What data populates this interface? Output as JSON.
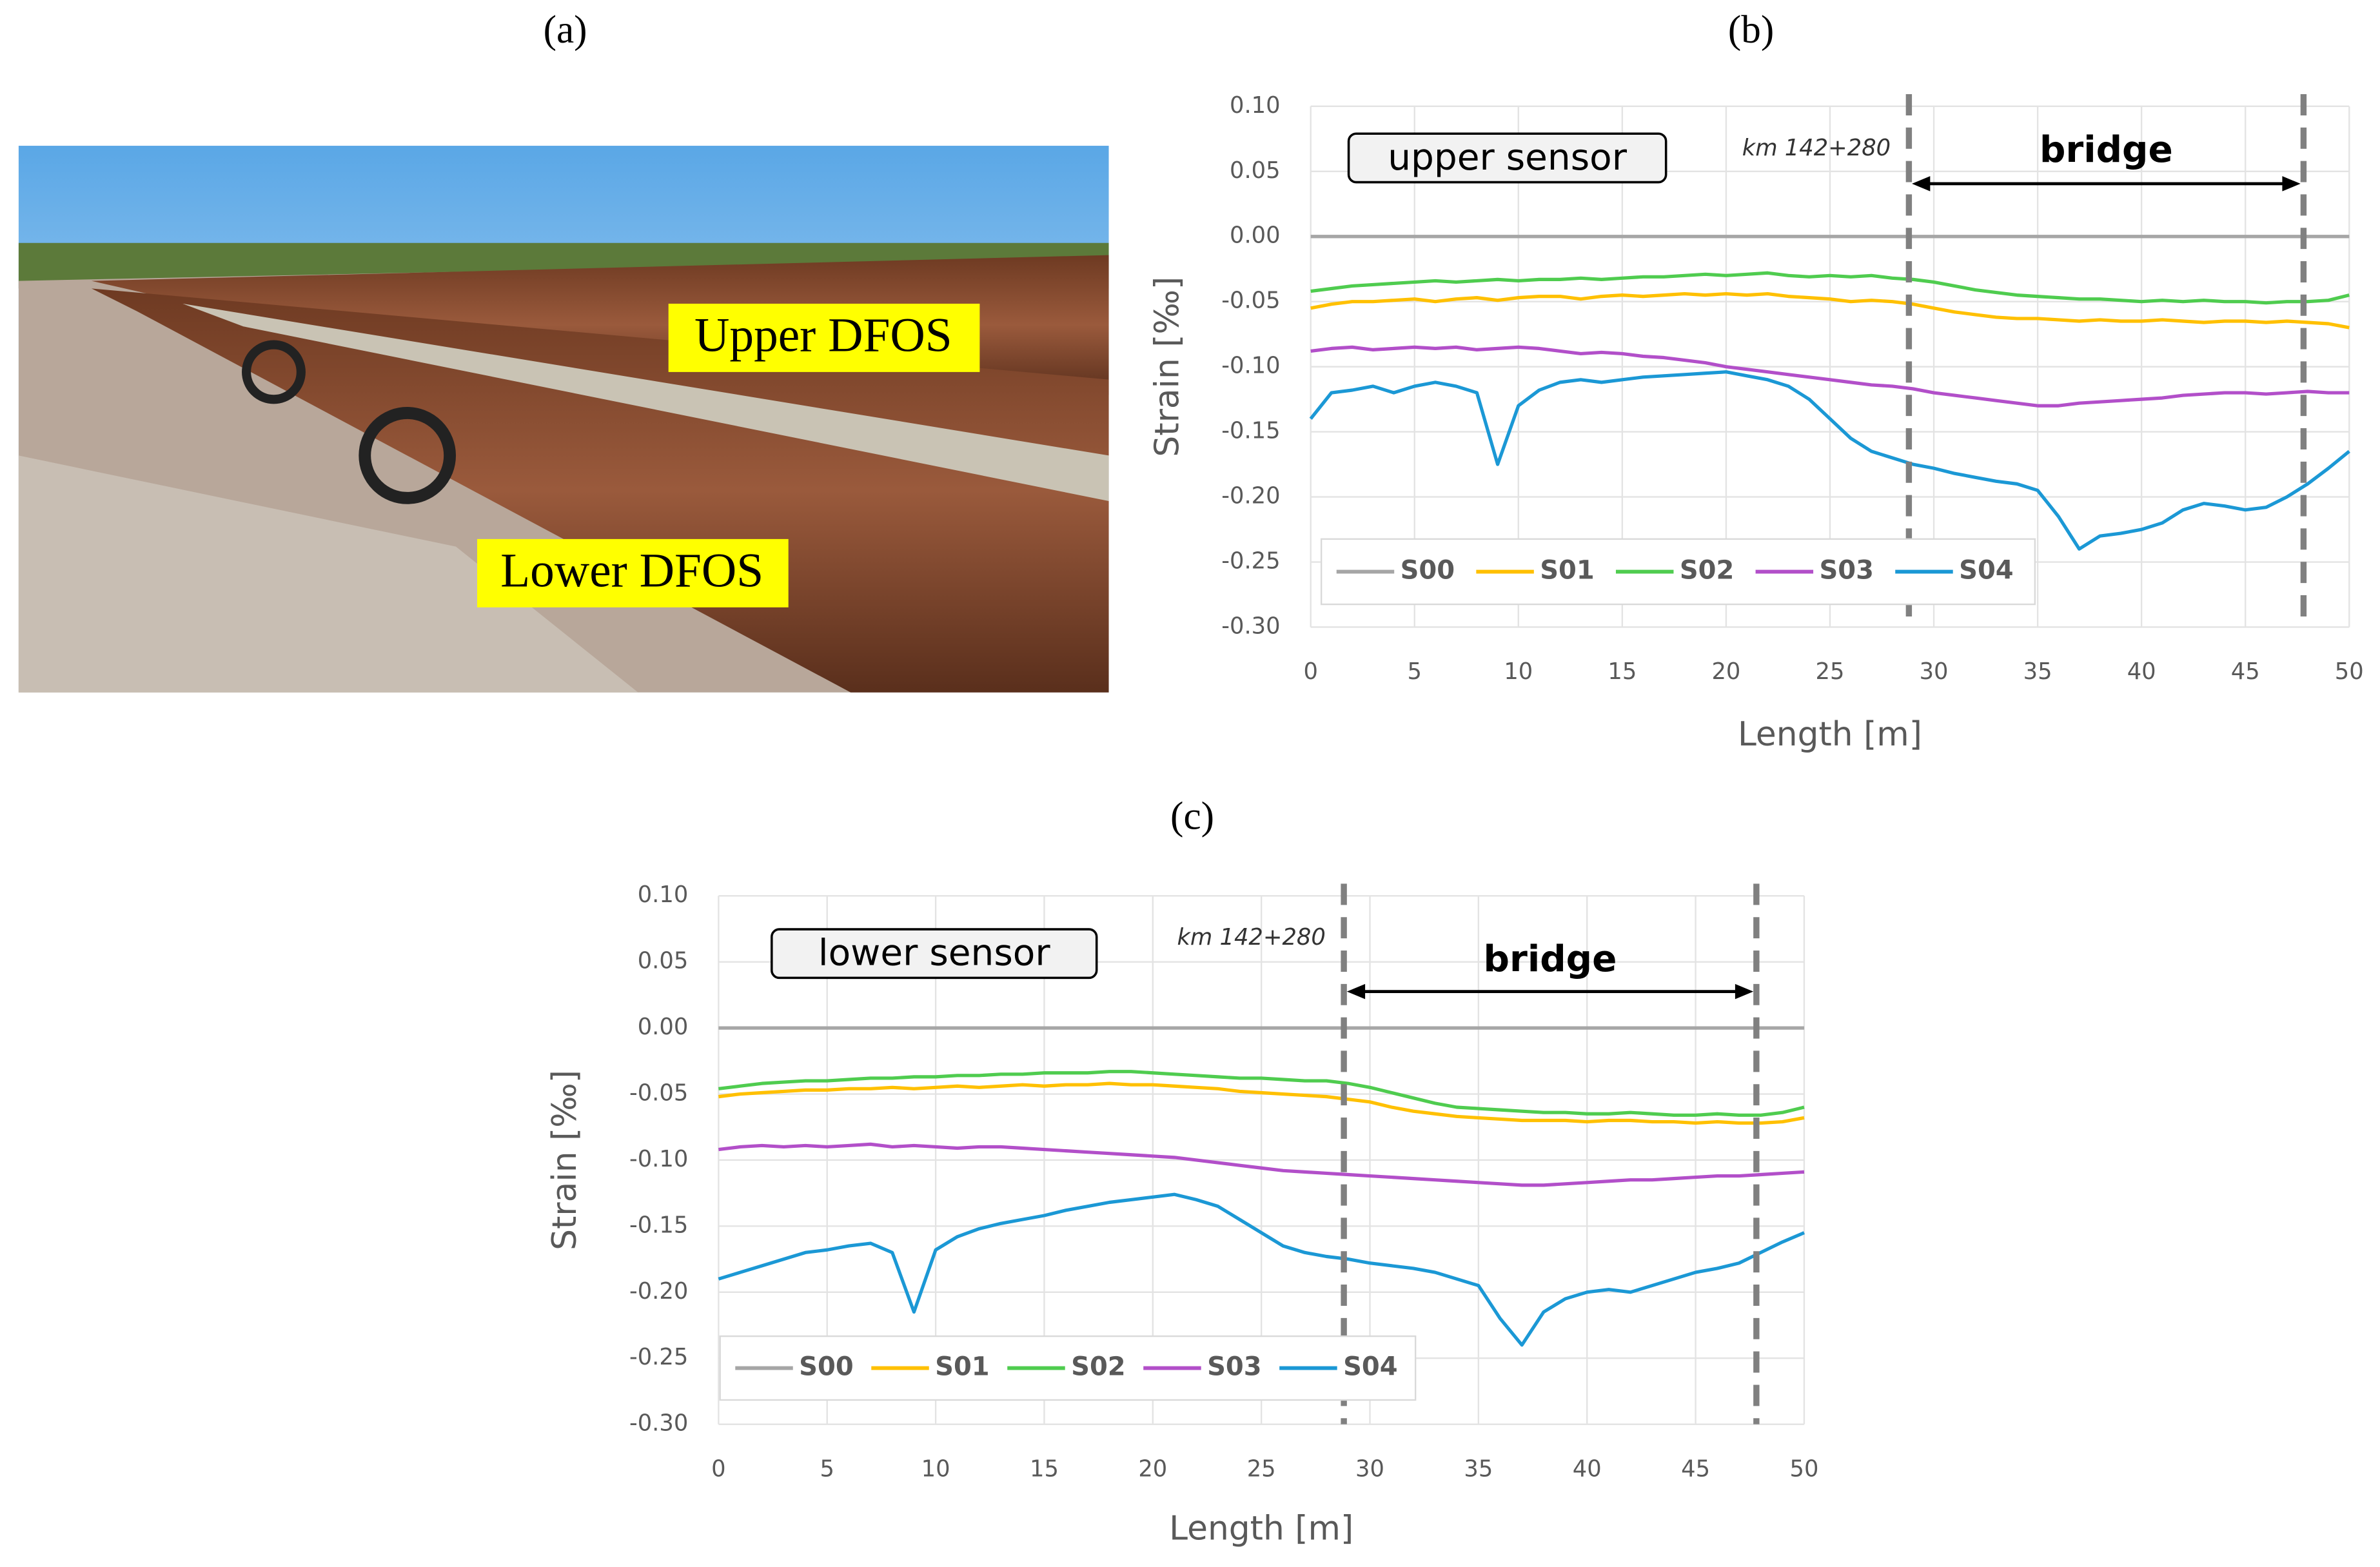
{
  "panels": [
    "(a)",
    "(b)",
    "(c)"
  ],
  "photo": {
    "labels": [
      "Upper DFOS",
      "Lower DFOS"
    ]
  },
  "chart_data": [
    {
      "type": "line",
      "y_label": "Strain [‰]",
      "x_label": "Length [m]",
      "box_label": "upper sensor",
      "annotations": [
        "km 142+280",
        "bridge"
      ],
      "bridge_span": [
        28.8,
        47.8
      ],
      "legend": "lower left",
      "grid": true,
      "xlim": [
        0,
        50
      ],
      "xticks": [
        0,
        5,
        10,
        15,
        20,
        25,
        30,
        35,
        40,
        45,
        50
      ],
      "ylim": [
        -0.3,
        0.1
      ],
      "yticks": [
        {
          "value": 0.1,
          "label": "0.10"
        },
        {
          "value": 0.05,
          "label": "0.05"
        },
        {
          "value": 0,
          "label": "0.00"
        },
        {
          "value": -0.05,
          "label": "-0.05"
        },
        {
          "value": -0.1,
          "label": "-0.10"
        },
        {
          "value": -0.15,
          "label": "-0.15"
        },
        {
          "value": -0.2,
          "label": "-0.20"
        },
        {
          "value": -0.25,
          "label": "-0.25"
        },
        {
          "value": -0.3,
          "label": "-0.30"
        }
      ],
      "x": [
        0,
        1,
        2,
        3,
        4,
        5,
        6,
        7,
        8,
        9,
        10,
        11,
        12,
        13,
        14,
        15,
        16,
        17,
        18,
        19,
        20,
        21,
        22,
        23,
        24,
        25,
        26,
        27,
        28,
        29,
        30,
        31,
        32,
        33,
        34,
        35,
        36,
        37,
        38,
        39,
        40,
        41,
        42,
        43,
        44,
        45,
        46,
        47,
        48,
        49,
        50
      ],
      "series": [
        {
          "name": "S00",
          "color": "#a6a6a6",
          "values": [
            0,
            0,
            0,
            0,
            0,
            0,
            0,
            0,
            0,
            0,
            0,
            0,
            0,
            0,
            0,
            0,
            0,
            0,
            0,
            0,
            0,
            0,
            0,
            0,
            0,
            0,
            0,
            0,
            0,
            0,
            0,
            0,
            0,
            0,
            0,
            0,
            0,
            0,
            0,
            0,
            0,
            0,
            0,
            0,
            0,
            0,
            0,
            0,
            0,
            0,
            0
          ]
        },
        {
          "name": "S01",
          "color": "#ffc000",
          "values": [
            -0.055,
            -0.052,
            -0.05,
            -0.05,
            -0.049,
            -0.048,
            -0.05,
            -0.048,
            -0.047,
            -0.049,
            -0.047,
            -0.046,
            -0.046,
            -0.048,
            -0.046,
            -0.045,
            -0.046,
            -0.045,
            -0.044,
            -0.045,
            -0.044,
            -0.045,
            -0.044,
            -0.046,
            -0.047,
            -0.048,
            -0.05,
            -0.049,
            -0.05,
            -0.052,
            -0.055,
            -0.058,
            -0.06,
            -0.062,
            -0.063,
            -0.063,
            -0.064,
            -0.065,
            -0.064,
            -0.065,
            -0.065,
            -0.064,
            -0.065,
            -0.066,
            -0.065,
            -0.065,
            -0.066,
            -0.065,
            -0.066,
            -0.067,
            -0.07
          ]
        },
        {
          "name": "S02",
          "color": "#4fcc4f",
          "values": [
            -0.042,
            -0.04,
            -0.038,
            -0.037,
            -0.036,
            -0.035,
            -0.034,
            -0.035,
            -0.034,
            -0.033,
            -0.034,
            -0.033,
            -0.033,
            -0.032,
            -0.033,
            -0.032,
            -0.031,
            -0.031,
            -0.03,
            -0.029,
            -0.03,
            -0.029,
            -0.028,
            -0.03,
            -0.031,
            -0.03,
            -0.031,
            -0.03,
            -0.032,
            -0.033,
            -0.035,
            -0.038,
            -0.041,
            -0.043,
            -0.045,
            -0.046,
            -0.047,
            -0.048,
            -0.048,
            -0.049,
            -0.05,
            -0.049,
            -0.05,
            -0.049,
            -0.05,
            -0.05,
            -0.051,
            -0.05,
            -0.05,
            -0.049,
            -0.045
          ]
        },
        {
          "name": "S03",
          "color": "#b24fc9",
          "values": [
            -0.088,
            -0.086,
            -0.085,
            -0.087,
            -0.086,
            -0.085,
            -0.086,
            -0.085,
            -0.087,
            -0.086,
            -0.085,
            -0.086,
            -0.088,
            -0.09,
            -0.089,
            -0.09,
            -0.092,
            -0.093,
            -0.095,
            -0.097,
            -0.1,
            -0.102,
            -0.104,
            -0.106,
            -0.108,
            -0.11,
            -0.112,
            -0.114,
            -0.115,
            -0.117,
            -0.12,
            -0.122,
            -0.124,
            -0.126,
            -0.128,
            -0.13,
            -0.13,
            -0.128,
            -0.127,
            -0.126,
            -0.125,
            -0.124,
            -0.122,
            -0.121,
            -0.12,
            -0.12,
            -0.121,
            -0.12,
            -0.119,
            -0.12,
            -0.12
          ]
        },
        {
          "name": "S04",
          "color": "#1b98d5",
          "values": [
            -0.14,
            -0.12,
            -0.118,
            -0.115,
            -0.12,
            -0.115,
            -0.112,
            -0.115,
            -0.12,
            -0.175,
            -0.13,
            -0.118,
            -0.112,
            -0.11,
            -0.112,
            -0.11,
            -0.108,
            -0.107,
            -0.106,
            -0.105,
            -0.104,
            -0.107,
            -0.11,
            -0.115,
            -0.125,
            -0.14,
            -0.155,
            -0.165,
            -0.17,
            -0.175,
            -0.178,
            -0.182,
            -0.185,
            -0.188,
            -0.19,
            -0.195,
            -0.215,
            -0.24,
            -0.23,
            -0.228,
            -0.225,
            -0.22,
            -0.21,
            -0.205,
            -0.207,
            -0.21,
            -0.208,
            -0.2,
            -0.19,
            -0.178,
            -0.165
          ]
        }
      ]
    },
    {
      "type": "line",
      "y_label": "Strain [‰]",
      "x_label": "Length [m]",
      "box_label": "lower sensor",
      "annotations": [
        "km 142+280",
        "bridge"
      ],
      "bridge_span": [
        28.8,
        47.8
      ],
      "legend": "lower left",
      "grid": true,
      "xlim": [
        0,
        50
      ],
      "xticks": [
        0,
        5,
        10,
        15,
        20,
        25,
        30,
        35,
        40,
        45,
        50
      ],
      "ylim": [
        -0.3,
        0.1
      ],
      "yticks": [
        {
          "value": 0.1,
          "label": "0.10"
        },
        {
          "value": 0.05,
          "label": "0.05"
        },
        {
          "value": 0,
          "label": "0.00"
        },
        {
          "value": -0.05,
          "label": "-0.05"
        },
        {
          "value": -0.1,
          "label": "-0.10"
        },
        {
          "value": -0.15,
          "label": "-0.15"
        },
        {
          "value": -0.2,
          "label": "-0.20"
        },
        {
          "value": -0.25,
          "label": "-0.25"
        },
        {
          "value": -0.3,
          "label": "-0.30"
        }
      ],
      "x": [
        0,
        1,
        2,
        3,
        4,
        5,
        6,
        7,
        8,
        9,
        10,
        11,
        12,
        13,
        14,
        15,
        16,
        17,
        18,
        19,
        20,
        21,
        22,
        23,
        24,
        25,
        26,
        27,
        28,
        29,
        30,
        31,
        32,
        33,
        34,
        35,
        36,
        37,
        38,
        39,
        40,
        41,
        42,
        43,
        44,
        45,
        46,
        47,
        48,
        49,
        50
      ],
      "series": [
        {
          "name": "S00",
          "color": "#a6a6a6",
          "values": [
            0,
            0,
            0,
            0,
            0,
            0,
            0,
            0,
            0,
            0,
            0,
            0,
            0,
            0,
            0,
            0,
            0,
            0,
            0,
            0,
            0,
            0,
            0,
            0,
            0,
            0,
            0,
            0,
            0,
            0,
            0,
            0,
            0,
            0,
            0,
            0,
            0,
            0,
            0,
            0,
            0,
            0,
            0,
            0,
            0,
            0,
            0,
            0,
            0,
            0,
            0
          ]
        },
        {
          "name": "S01",
          "color": "#ffc000",
          "values": [
            -0.052,
            -0.05,
            -0.049,
            -0.048,
            -0.047,
            -0.047,
            -0.046,
            -0.046,
            -0.045,
            -0.046,
            -0.045,
            -0.044,
            -0.045,
            -0.044,
            -0.043,
            -0.044,
            -0.043,
            -0.043,
            -0.042,
            -0.043,
            -0.043,
            -0.044,
            -0.045,
            -0.046,
            -0.048,
            -0.049,
            -0.05,
            -0.051,
            -0.052,
            -0.054,
            -0.056,
            -0.06,
            -0.063,
            -0.065,
            -0.067,
            -0.068,
            -0.069,
            -0.07,
            -0.07,
            -0.07,
            -0.071,
            -0.07,
            -0.07,
            -0.071,
            -0.071,
            -0.072,
            -0.071,
            -0.072,
            -0.072,
            -0.071,
            -0.068
          ]
        },
        {
          "name": "S02",
          "color": "#4fcc4f",
          "values": [
            -0.046,
            -0.044,
            -0.042,
            -0.041,
            -0.04,
            -0.04,
            -0.039,
            -0.038,
            -0.038,
            -0.037,
            -0.037,
            -0.036,
            -0.036,
            -0.035,
            -0.035,
            -0.034,
            -0.034,
            -0.034,
            -0.033,
            -0.033,
            -0.034,
            -0.035,
            -0.036,
            -0.037,
            -0.038,
            -0.038,
            -0.039,
            -0.04,
            -0.04,
            -0.042,
            -0.045,
            -0.049,
            -0.053,
            -0.057,
            -0.06,
            -0.061,
            -0.062,
            -0.063,
            -0.064,
            -0.064,
            -0.065,
            -0.065,
            -0.064,
            -0.065,
            -0.066,
            -0.066,
            -0.065,
            -0.066,
            -0.066,
            -0.064,
            -0.06
          ]
        },
        {
          "name": "S03",
          "color": "#b24fc9",
          "values": [
            -0.092,
            -0.09,
            -0.089,
            -0.09,
            -0.089,
            -0.09,
            -0.089,
            -0.088,
            -0.09,
            -0.089,
            -0.09,
            -0.091,
            -0.09,
            -0.09,
            -0.091,
            -0.092,
            -0.093,
            -0.094,
            -0.095,
            -0.096,
            -0.097,
            -0.098,
            -0.1,
            -0.102,
            -0.104,
            -0.106,
            -0.108,
            -0.109,
            -0.11,
            -0.111,
            -0.112,
            -0.113,
            -0.114,
            -0.115,
            -0.116,
            -0.117,
            -0.118,
            -0.119,
            -0.119,
            -0.118,
            -0.117,
            -0.116,
            -0.115,
            -0.115,
            -0.114,
            -0.113,
            -0.112,
            -0.112,
            -0.111,
            -0.11,
            -0.109
          ]
        },
        {
          "name": "S04",
          "color": "#1b98d5",
          "values": [
            -0.19,
            -0.185,
            -0.18,
            -0.175,
            -0.17,
            -0.168,
            -0.165,
            -0.163,
            -0.17,
            -0.215,
            -0.168,
            -0.158,
            -0.152,
            -0.148,
            -0.145,
            -0.142,
            -0.138,
            -0.135,
            -0.132,
            -0.13,
            -0.128,
            -0.126,
            -0.13,
            -0.135,
            -0.145,
            -0.155,
            -0.165,
            -0.17,
            -0.173,
            -0.175,
            -0.178,
            -0.18,
            -0.182,
            -0.185,
            -0.19,
            -0.195,
            -0.22,
            -0.24,
            -0.215,
            -0.205,
            -0.2,
            -0.198,
            -0.2,
            -0.195,
            -0.19,
            -0.185,
            -0.182,
            -0.178,
            -0.17,
            -0.162,
            -0.155
          ]
        }
      ]
    }
  ]
}
